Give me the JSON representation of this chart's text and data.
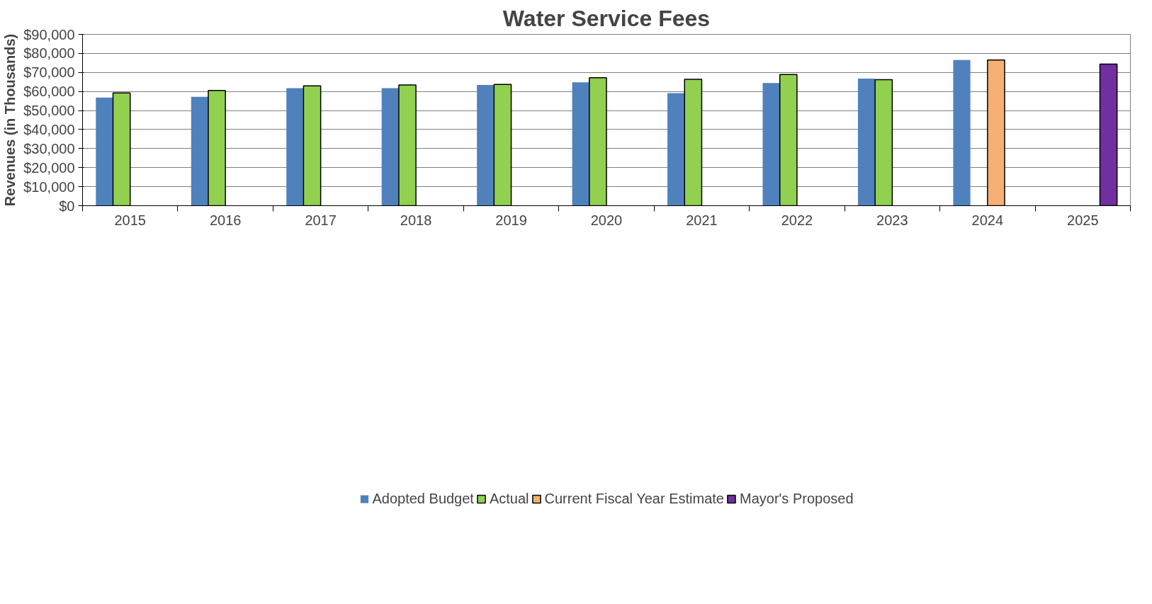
{
  "chart_data": {
    "type": "bar",
    "title": "Water Service Fees",
    "ylabel": "Revenues (in Thousands)",
    "categories": [
      "2015",
      "2016",
      "2017",
      "2018",
      "2019",
      "2020",
      "2021",
      "2022",
      "2023",
      "2024",
      "2025"
    ],
    "series": [
      {
        "name": "Adopted Budget",
        "color": "#4f81bd",
        "values": [
          56800,
          57200,
          61700,
          61700,
          63400,
          64800,
          59100,
          64400,
          66800,
          76500,
          null
        ]
      },
      {
        "name": "Actual",
        "color": "#92d050",
        "values": [
          59200,
          60500,
          62900,
          63400,
          63700,
          67200,
          66400,
          68900,
          66200,
          null,
          null
        ]
      },
      {
        "name": "Current Fiscal Year Estimate",
        "color": "#f5b072",
        "values": [
          null,
          null,
          null,
          null,
          null,
          null,
          null,
          null,
          null,
          76500,
          null
        ]
      },
      {
        "name": "Mayor's Proposed",
        "color": "#7030a0",
        "values": [
          null,
          null,
          null,
          null,
          null,
          null,
          null,
          null,
          null,
          null,
          74400
        ]
      }
    ],
    "ylim": [
      0,
      90000
    ],
    "yticks": [
      {
        "value": 0,
        "label": "$0"
      },
      {
        "value": 10000,
        "label": "$10,000"
      },
      {
        "value": 20000,
        "label": "$20,000"
      },
      {
        "value": 30000,
        "label": "$30,000"
      },
      {
        "value": 40000,
        "label": "$40,000"
      },
      {
        "value": 50000,
        "label": "$50,000"
      },
      {
        "value": 60000,
        "label": "$60,000"
      },
      {
        "value": 70000,
        "label": "$70,000"
      },
      {
        "value": 80000,
        "label": "$80,000"
      },
      {
        "value": 90000,
        "label": "$90,000"
      }
    ],
    "grid": "y",
    "legend": "bottom"
  }
}
